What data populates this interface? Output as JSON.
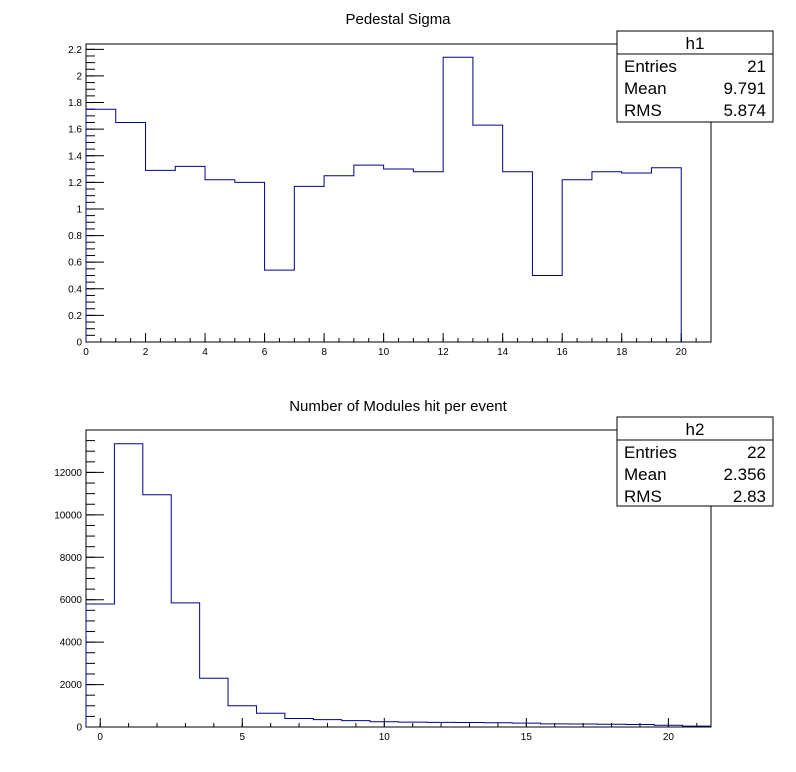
{
  "chart_data": [
    {
      "type": "bar",
      "histogram": true,
      "title": "Pedestal Sigma",
      "xlabel": "",
      "ylabel": "",
      "xlim": [
        0,
        21
      ],
      "ylim": [
        0,
        2.24
      ],
      "x_ticks": [
        0,
        2,
        4,
        6,
        8,
        10,
        12,
        14,
        16,
        18,
        20
      ],
      "y_ticks": [
        0,
        0.2,
        0.4,
        0.6,
        0.8,
        1,
        1.2,
        1.4,
        1.6,
        1.8,
        2,
        2.2
      ],
      "bin_edges": [
        0,
        1,
        2,
        3,
        4,
        5,
        6,
        7,
        8,
        9,
        10,
        11,
        12,
        13,
        14,
        15,
        16,
        17,
        18,
        19,
        20
      ],
      "values": [
        1.75,
        1.65,
        1.29,
        1.32,
        1.22,
        1.2,
        0.54,
        1.17,
        1.25,
        1.33,
        1.3,
        1.28,
        2.14,
        1.63,
        1.28,
        0.5,
        1.22,
        1.28,
        1.27,
        1.31
      ],
      "color": "#00008b",
      "stats": {
        "name": "h1",
        "rows": [
          {
            "label": "Entries",
            "value": "21"
          },
          {
            "label": "Mean",
            "value": "9.791"
          },
          {
            "label": "RMS",
            "value": "5.874"
          }
        ]
      }
    },
    {
      "type": "bar",
      "histogram": true,
      "title": "Number of Modules hit per event",
      "xlabel": "",
      "ylabel": "",
      "xlim": [
        -0.5,
        21.5
      ],
      "ylim": [
        0,
        14000
      ],
      "x_ticks": [
        0,
        5,
        10,
        15,
        20
      ],
      "y_ticks": [
        0,
        2000,
        4000,
        6000,
        8000,
        10000,
        12000
      ],
      "bin_edges": [
        -0.5,
        0.5,
        1.5,
        2.5,
        3.5,
        4.5,
        5.5,
        6.5,
        7.5,
        8.5,
        9.5,
        10.5,
        11.5,
        12.5,
        13.5,
        14.5,
        15.5,
        16.5,
        17.5,
        18.5,
        19.5,
        20.5,
        21.5
      ],
      "values": [
        5800,
        13350,
        10950,
        5850,
        2300,
        1000,
        650,
        400,
        350,
        300,
        250,
        230,
        220,
        210,
        200,
        180,
        150,
        140,
        130,
        120,
        80,
        40
      ],
      "color": "#00008b",
      "stats": {
        "name": "h2",
        "rows": [
          {
            "label": "Entries",
            "value": "22"
          },
          {
            "label": "Mean",
            "value": "2.356"
          },
          {
            "label": "RMS",
            "value": "2.83"
          }
        ]
      }
    }
  ]
}
